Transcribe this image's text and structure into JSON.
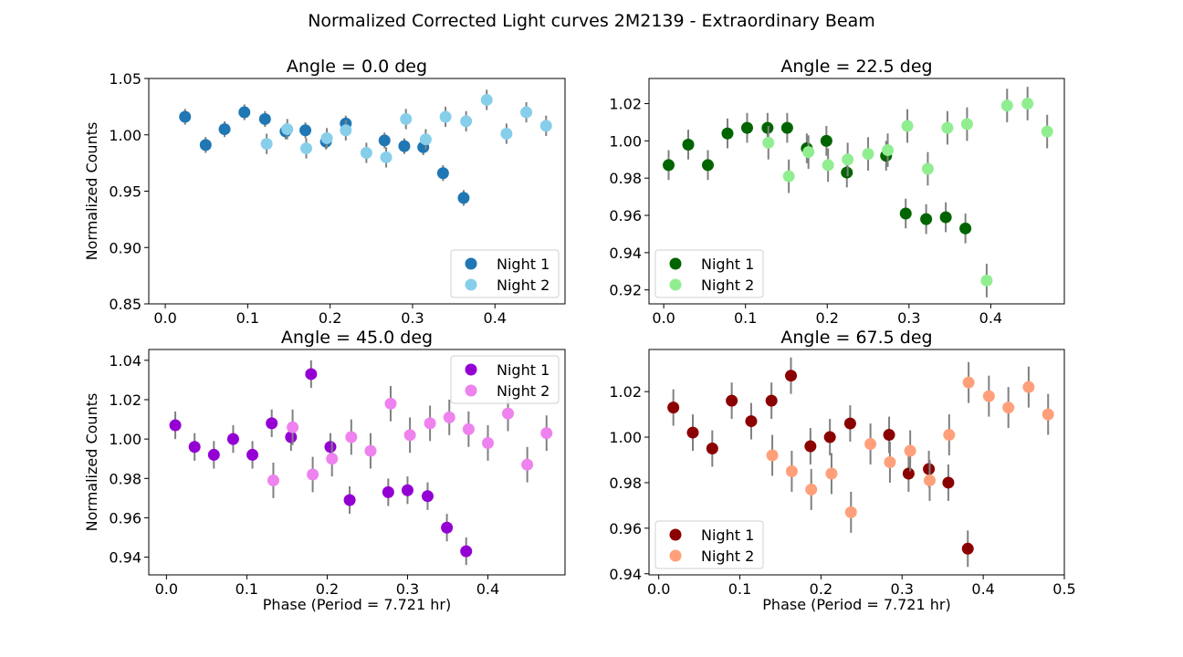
{
  "figure": {
    "title": "Normalized Corrected Light curves 2M2139 - Extraordinary Beam"
  },
  "chart_data": [
    {
      "type": "scatter",
      "title": "Angle = 0.0 deg",
      "xlabel": "",
      "ylabel": "Normalized Counts",
      "xlim": [
        -0.02,
        0.485
      ],
      "ylim": [
        0.85,
        1.05
      ],
      "xticks": [
        "0.0",
        "0.1",
        "0.2",
        "0.3",
        "0.4"
      ],
      "xtick_values": [
        0.0,
        0.1,
        0.2,
        0.3,
        0.4
      ],
      "yticks": [
        "0.85",
        "0.90",
        "0.95",
        "1.00",
        "1.05"
      ],
      "ytick_values": [
        0.85,
        0.9,
        0.95,
        1.0,
        1.05
      ],
      "legend": "lower-right",
      "series": [
        {
          "name": "Night 1",
          "color": "#1f77b4",
          "x": [
            0.024,
            0.049,
            0.072,
            0.096,
            0.121,
            0.146,
            0.17,
            0.195,
            0.219,
            0.266,
            0.29,
            0.313,
            0.337,
            0.362
          ],
          "y": [
            1.016,
            0.991,
            1.005,
            1.02,
            1.014,
            1.003,
            1.004,
            0.994,
            1.01,
            0.995,
            0.99,
            0.989,
            0.966,
            0.944
          ],
          "err": [
            0.007,
            0.007,
            0.007,
            0.007,
            0.007,
            0.007,
            0.007,
            0.007,
            0.007,
            0.007,
            0.007,
            0.007,
            0.007,
            0.007
          ]
        },
        {
          "name": "Night 2",
          "color": "#87ceeb",
          "x": [
            0.123,
            0.148,
            0.171,
            0.196,
            0.219,
            0.244,
            0.268,
            0.292,
            0.316,
            0.34,
            0.365,
            0.39,
            0.414,
            0.438,
            0.462
          ],
          "y": [
            0.992,
            1.005,
            0.988,
            0.997,
            1.004,
            0.984,
            0.98,
            1.014,
            0.996,
            1.016,
            1.012,
            1.031,
            1.001,
            1.02,
            1.008
          ],
          "err": [
            0.009,
            0.009,
            0.009,
            0.009,
            0.009,
            0.009,
            0.009,
            0.009,
            0.009,
            0.009,
            0.009,
            0.009,
            0.009,
            0.009,
            0.009
          ]
        }
      ]
    },
    {
      "type": "scatter",
      "title": "Angle = 22.5 deg",
      "xlabel": "",
      "ylabel": "",
      "xlim": [
        -0.018,
        0.49
      ],
      "ylim": [
        0.9125,
        1.0335
      ],
      "xticks": [
        "0.0",
        "0.1",
        "0.2",
        "0.3",
        "0.4"
      ],
      "xtick_values": [
        0.0,
        0.1,
        0.2,
        0.3,
        0.4
      ],
      "yticks": [
        "0.92",
        "0.94",
        "0.96",
        "0.98",
        "1.00",
        "1.02"
      ],
      "ytick_values": [
        0.92,
        0.94,
        0.96,
        0.98,
        1.0,
        1.02
      ],
      "legend": "lower-left",
      "series": [
        {
          "name": "Night 1",
          "color": "#006400",
          "x": [
            0.006,
            0.03,
            0.054,
            0.078,
            0.102,
            0.127,
            0.151,
            0.175,
            0.199,
            0.224,
            0.272,
            0.296,
            0.321,
            0.345,
            0.369
          ],
          "y": [
            0.987,
            0.998,
            0.987,
            1.004,
            1.007,
            1.007,
            1.007,
            0.996,
            1.0,
            0.983,
            0.992,
            0.961,
            0.958,
            0.959,
            0.953
          ],
          "err": [
            0.008,
            0.008,
            0.008,
            0.008,
            0.008,
            0.008,
            0.008,
            0.008,
            0.008,
            0.008,
            0.008,
            0.008,
            0.008,
            0.008,
            0.008
          ]
        },
        {
          "name": "Night 2",
          "color": "#90ee90",
          "x": [
            0.128,
            0.153,
            0.177,
            0.201,
            0.225,
            0.25,
            0.274,
            0.298,
            0.323,
            0.347,
            0.371,
            0.395,
            0.42,
            0.445,
            0.469
          ],
          "y": [
            0.999,
            0.981,
            0.994,
            0.987,
            0.99,
            0.993,
            0.995,
            1.008,
            0.985,
            1.007,
            1.009,
            0.925,
            1.019,
            1.02,
            1.005
          ],
          "err": [
            0.009,
            0.009,
            0.009,
            0.009,
            0.009,
            0.009,
            0.009,
            0.009,
            0.009,
            0.009,
            0.009,
            0.009,
            0.009,
            0.009,
            0.009
          ]
        }
      ]
    },
    {
      "type": "scatter",
      "title": "Angle = 45.0 deg",
      "xlabel": "Phase (Period = 7.721 hr)",
      "ylabel": "Normalized Counts",
      "xlim": [
        -0.022,
        0.496
      ],
      "ylim": [
        0.931,
        1.0455
      ],
      "xticks": [
        "0.0",
        "0.1",
        "0.2",
        "0.3",
        "0.4"
      ],
      "xtick_values": [
        0.0,
        0.1,
        0.2,
        0.3,
        0.4
      ],
      "yticks": [
        "0.94",
        "0.96",
        "0.98",
        "1.00",
        "1.02",
        "1.04"
      ],
      "ytick_values": [
        0.94,
        0.96,
        0.98,
        1.0,
        1.02,
        1.04
      ],
      "legend": "upper-right",
      "series": [
        {
          "name": "Night 1",
          "color": "#9400d3",
          "x": [
            0.011,
            0.035,
            0.059,
            0.083,
            0.107,
            0.131,
            0.155,
            0.18,
            0.204,
            0.228,
            0.276,
            0.3,
            0.325,
            0.349,
            0.373
          ],
          "y": [
            1.007,
            0.996,
            0.992,
            1.0,
            0.992,
            1.008,
            1.001,
            1.033,
            0.996,
            0.969,
            0.973,
            0.974,
            0.971,
            0.955,
            0.943
          ],
          "err": [
            0.007,
            0.007,
            0.007,
            0.007,
            0.007,
            0.007,
            0.007,
            0.007,
            0.007,
            0.007,
            0.007,
            0.007,
            0.007,
            0.007,
            0.007
          ]
        },
        {
          "name": "Night 2",
          "color": "#ee82ee",
          "x": [
            0.133,
            0.157,
            0.182,
            0.206,
            0.23,
            0.254,
            0.279,
            0.303,
            0.328,
            0.352,
            0.376,
            0.4,
            0.425,
            0.449,
            0.473
          ],
          "y": [
            0.979,
            1.006,
            0.982,
            0.99,
            1.001,
            0.994,
            1.018,
            1.002,
            1.008,
            1.011,
            1.005,
            0.998,
            1.013,
            0.987,
            1.003
          ],
          "err": [
            0.009,
            0.009,
            0.009,
            0.009,
            0.009,
            0.009,
            0.009,
            0.009,
            0.009,
            0.009,
            0.009,
            0.009,
            0.009,
            0.009,
            0.009
          ]
        }
      ]
    },
    {
      "type": "scatter",
      "title": "Angle = 67.5 deg",
      "xlabel": "Phase (Period = 7.721 hr)",
      "ylabel": "",
      "xlim": [
        -0.012,
        0.5
      ],
      "ylim": [
        0.9395,
        1.0385
      ],
      "xticks": [
        "0.0",
        "0.1",
        "0.2",
        "0.3",
        "0.4",
        "0.5"
      ],
      "xtick_values": [
        0.0,
        0.1,
        0.2,
        0.3,
        0.4,
        0.5
      ],
      "yticks": [
        "0.94",
        "0.96",
        "0.98",
        "1.00",
        "1.02"
      ],
      "ytick_values": [
        0.94,
        0.96,
        0.98,
        1.0,
        1.02
      ],
      "legend": "lower-left",
      "series": [
        {
          "name": "Night 1",
          "color": "#8b0000",
          "x": [
            0.018,
            0.042,
            0.066,
            0.09,
            0.114,
            0.139,
            0.163,
            0.187,
            0.211,
            0.236,
            0.284,
            0.308,
            0.333,
            0.357,
            0.381
          ],
          "y": [
            1.013,
            1.002,
            0.995,
            1.016,
            1.007,
            1.016,
            1.027,
            0.996,
            1.0,
            1.006,
            1.001,
            0.984,
            0.986,
            0.98,
            0.951
          ],
          "err": [
            0.008,
            0.008,
            0.008,
            0.008,
            0.008,
            0.008,
            0.008,
            0.008,
            0.008,
            0.008,
            0.008,
            0.008,
            0.008,
            0.008,
            0.008
          ]
        },
        {
          "name": "Night 2",
          "color": "#ffa07a",
          "x": [
            0.14,
            0.164,
            0.188,
            0.213,
            0.237,
            0.261,
            0.285,
            0.31,
            0.334,
            0.358,
            0.382,
            0.407,
            0.431,
            0.456,
            0.48
          ],
          "y": [
            0.992,
            0.985,
            0.977,
            0.984,
            0.967,
            0.997,
            0.989,
            0.994,
            0.981,
            1.001,
            1.024,
            1.018,
            1.013,
            1.022,
            1.01
          ],
          "err": [
            0.009,
            0.009,
            0.009,
            0.009,
            0.009,
            0.009,
            0.009,
            0.009,
            0.009,
            0.009,
            0.009,
            0.009,
            0.009,
            0.009,
            0.009
          ]
        }
      ]
    }
  ]
}
